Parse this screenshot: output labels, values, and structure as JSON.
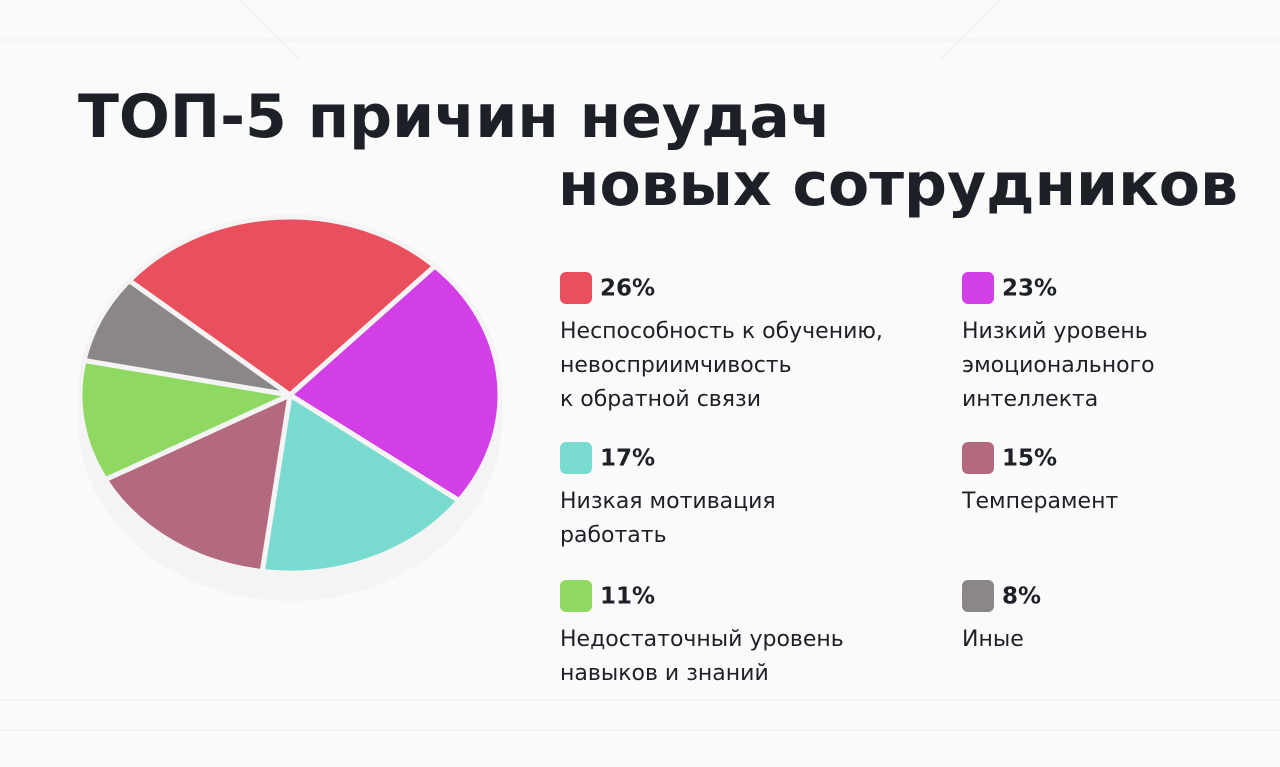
{
  "chart_data": {
    "type": "pie",
    "title": "ТОП-5 причин неудач\nновых сотрудников",
    "categories": [
      "Неспособность к обучению,\nневосприимчивость\nк обратной связи",
      "Низкий уровень\nэмоционального\nинтеллекта",
      "Низкая мотивация\nработать",
      "Темперамент",
      "Недостаточный уровень\nнавыков и знаний",
      "Иные"
    ],
    "values": [
      26,
      23,
      17,
      15,
      11,
      8
    ],
    "value_labels": [
      "26%",
      "23%",
      "17%",
      "15%",
      "11%",
      "8%"
    ],
    "colors": [
      "#e94f5c",
      "#d33fe6",
      "#79dbcf",
      "#b36a7e",
      "#8fd962",
      "#8c8787"
    ]
  }
}
